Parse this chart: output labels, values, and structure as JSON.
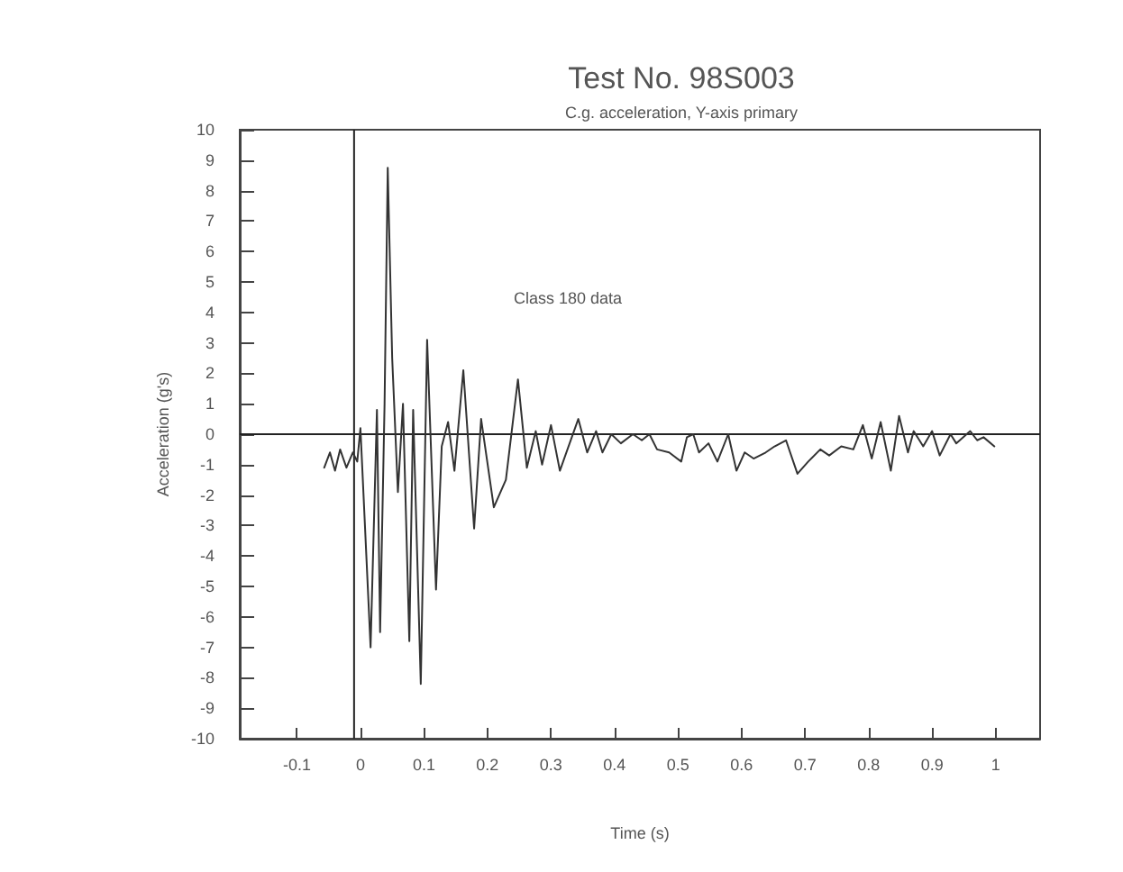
{
  "chart_data": {
    "type": "line",
    "title": "Test No. 98S003",
    "subtitle": "C.g. acceleration, Y-axis primary",
    "xlabel": "Time (s)",
    "ylabel": "Acceleration (g's)",
    "annotations": [
      "Class 180 data"
    ],
    "x": [
      -0.057,
      -0.048,
      -0.04,
      -0.032,
      -0.022,
      -0.012,
      -0.005,
      0.0,
      0.016,
      0.026,
      0.031,
      0.038,
      0.043,
      0.05,
      0.059,
      0.067,
      0.077,
      0.083,
      0.095,
      0.105,
      0.119,
      0.128,
      0.138,
      0.148,
      0.162,
      0.179,
      0.19,
      0.21,
      0.229,
      0.248,
      0.262,
      0.276,
      0.286,
      0.3,
      0.314,
      0.343,
      0.357,
      0.371,
      0.381,
      0.395,
      0.41,
      0.429,
      0.443,
      0.455,
      0.467,
      0.486,
      0.505,
      0.514,
      0.524,
      0.533,
      0.548,
      0.562,
      0.579,
      0.592,
      0.605,
      0.619,
      0.638,
      0.652,
      0.67,
      0.688,
      0.705,
      0.724,
      0.738,
      0.757,
      0.776,
      0.791,
      0.805,
      0.819,
      0.835,
      0.848,
      0.862,
      0.871,
      0.886,
      0.9,
      0.912,
      0.929,
      0.938,
      0.96,
      0.971,
      0.981,
      0.998
    ],
    "series": [
      {
        "color": "#333333",
        "values": [
          -1.1,
          -0.6,
          -1.2,
          -0.5,
          -1.1,
          -0.6,
          -0.9,
          0.2,
          -7.0,
          0.8,
          -6.5,
          1.0,
          8.75,
          2.5,
          -1.9,
          1.0,
          -6.8,
          0.8,
          -8.2,
          3.1,
          -5.1,
          -0.4,
          0.4,
          -1.2,
          2.1,
          -3.1,
          0.5,
          -2.4,
          -1.5,
          1.8,
          -1.1,
          0.1,
          -1.0,
          0.3,
          -1.2,
          0.5,
          -0.6,
          0.1,
          -0.6,
          0.0,
          -0.3,
          0.0,
          -0.2,
          0.0,
          -0.5,
          -0.6,
          -0.9,
          -0.1,
          0.0,
          -0.6,
          -0.3,
          -0.9,
          0.0,
          -1.2,
          -0.6,
          -0.8,
          -0.6,
          -0.4,
          -0.2,
          -1.3,
          -0.9,
          -0.5,
          -0.7,
          -0.4,
          -0.5,
          0.3,
          -0.8,
          0.4,
          -1.2,
          0.6,
          -0.6,
          0.1,
          -0.4,
          0.1,
          -0.7,
          0.0,
          -0.3,
          0.1,
          -0.2,
          -0.1,
          -0.4
        ]
      }
    ],
    "xlim": [
      -0.19,
      1.07
    ],
    "xticks": [
      -0.1,
      0,
      0.1,
      0.2,
      0.3,
      0.4,
      0.5,
      0.6,
      0.7,
      0.8,
      0.9,
      1
    ],
    "ylim": [
      -10,
      10
    ],
    "yticks": [
      -10,
      -9,
      -8,
      -7,
      -6,
      -5,
      -4,
      -3,
      -2,
      -1,
      0,
      1,
      2,
      3,
      4,
      5,
      6,
      7,
      8,
      9,
      10
    ],
    "ref_lines": [
      {
        "axis": "x",
        "value": -0.01
      },
      {
        "axis": "y",
        "value": 0
      }
    ],
    "grid": false,
    "marker": "none",
    "line_style": "solid"
  }
}
